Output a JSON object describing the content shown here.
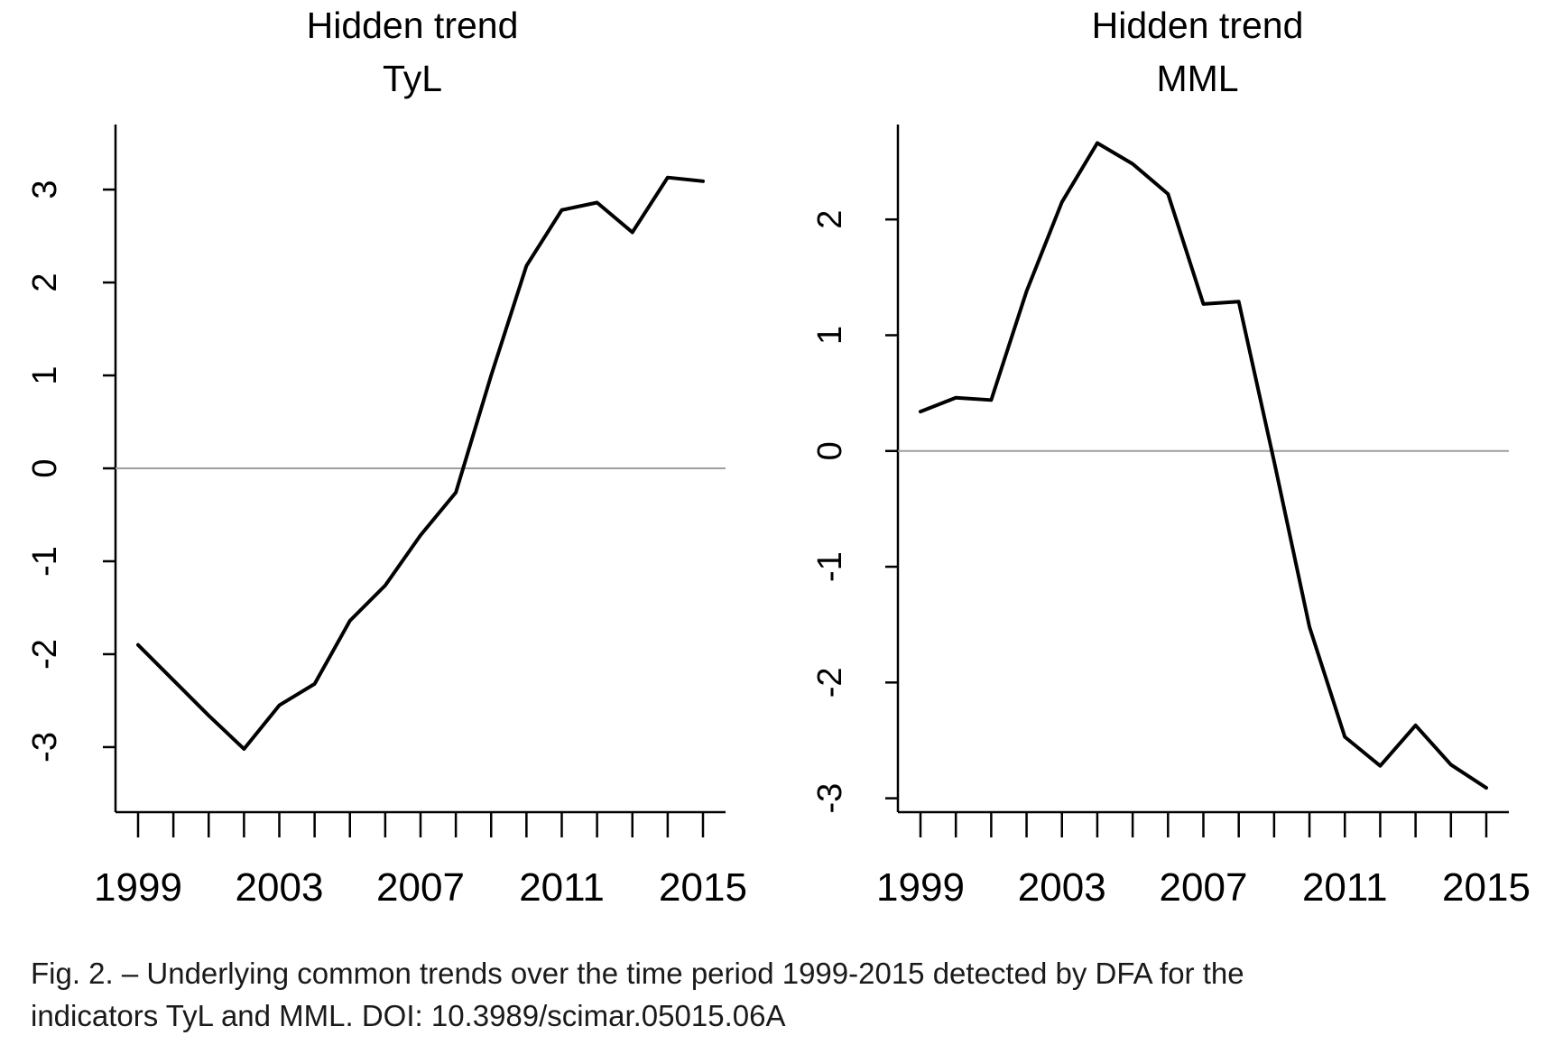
{
  "chart_data": [
    {
      "type": "line",
      "title": "Hidden trend",
      "subtitle": "TyL",
      "x": [
        1999,
        2000,
        2001,
        2002,
        2003,
        2004,
        2005,
        2006,
        2007,
        2008,
        2009,
        2010,
        2011,
        2012,
        2013,
        2014,
        2015
      ],
      "x_tick_labels": [
        "1999",
        "2003",
        "2007",
        "2011",
        "2015"
      ],
      "y_tick_labels": [
        "-3",
        "-2",
        "-1",
        "0",
        "1",
        "2",
        "3"
      ],
      "series": [
        {
          "values": [
            -1.9,
            -2.28,
            -2.66,
            -3.02,
            -2.55,
            -2.32,
            -1.64,
            -1.26,
            -0.72,
            -0.26,
            1.0,
            2.18,
            2.78,
            2.86,
            2.54,
            3.13,
            3.09
          ]
        }
      ],
      "reference_line": 0,
      "xlim": [
        1999,
        2015
      ],
      "ylim": [
        -3.7,
        3.7
      ],
      "grid": false,
      "line_color": "#000000",
      "reference_color": "#9e9e9e"
    },
    {
      "type": "line",
      "title": "Hidden trend",
      "subtitle": "MML",
      "x": [
        1999,
        2000,
        2001,
        2002,
        2003,
        2004,
        2005,
        2006,
        2007,
        2008,
        2009,
        2010,
        2011,
        2012,
        2013,
        2014,
        2015
      ],
      "x_tick_labels": [
        "1999",
        "2003",
        "2007",
        "2011",
        "2015"
      ],
      "y_tick_labels": [
        "-3",
        "-2",
        "-1",
        "0",
        "1",
        "2"
      ],
      "series": [
        {
          "values": [
            0.34,
            0.46,
            0.44,
            1.38,
            2.15,
            2.66,
            2.48,
            2.22,
            1.27,
            1.29,
            -0.09,
            -1.52,
            -2.47,
            -2.72,
            -2.37,
            -2.71,
            -2.91
          ]
        }
      ],
      "reference_line": 0,
      "xlim": [
        1999,
        2015
      ],
      "ylim": [
        -3.12,
        2.82
      ],
      "grid": false,
      "line_color": "#000000",
      "reference_color": "#9e9e9e"
    }
  ],
  "caption": {
    "line1": "Fig. 2. – Underlying common trends over the time period 1999-2015 detected by DFA for the",
    "line2": "indicators TyL and MML. DOI: 10.3989/scimar.05015.06A"
  }
}
